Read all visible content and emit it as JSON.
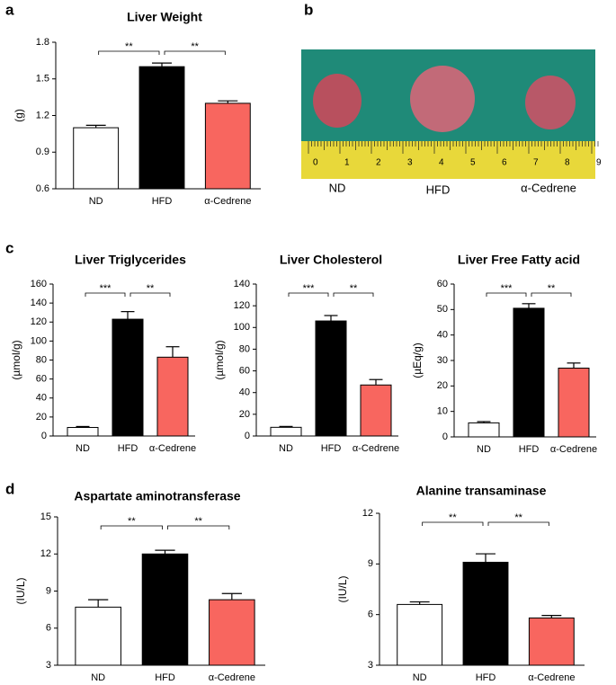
{
  "panel_labels": [
    "a",
    "b",
    "c",
    "d"
  ],
  "photo": {
    "ruler_labels": [
      0,
      1,
      2,
      3,
      4,
      5,
      6,
      7,
      8,
      9
    ],
    "labels": [
      "ND",
      "HFD",
      "α-Cedrene"
    ]
  },
  "chart_data": [
    {
      "type": "bar",
      "title": "Liver Weight",
      "y_label": "(g)",
      "categories": [
        "ND",
        "HFD",
        "α-Cedrene"
      ],
      "values": [
        1.1,
        1.6,
        1.3
      ],
      "errors": [
        0.02,
        0.03,
        0.02
      ],
      "colors": [
        "#ffffff",
        "#000000",
        "#f8665f"
      ],
      "ylim": [
        0.6,
        1.8
      ],
      "yticks": [
        0.6,
        0.9,
        1.2,
        1.5,
        1.8
      ],
      "brackets": [
        {
          "label": "**",
          "from": 0,
          "to": 1
        },
        {
          "label": "**",
          "from": 1,
          "to": 2
        }
      ]
    },
    {
      "type": "bar",
      "title": "Liver Triglycerides",
      "y_label": "(µmol/g)",
      "categories": [
        "ND",
        "HFD",
        "α-Cedrene"
      ],
      "values": [
        9,
        123,
        83
      ],
      "errors": [
        1,
        8,
        11
      ],
      "colors": [
        "#ffffff",
        "#000000",
        "#f8665f"
      ],
      "ylim": [
        0,
        160
      ],
      "yticks": [
        0,
        20,
        40,
        60,
        80,
        100,
        120,
        140,
        160
      ],
      "brackets": [
        {
          "label": "***",
          "from": 0,
          "to": 1
        },
        {
          "label": "**",
          "from": 1,
          "to": 2
        }
      ]
    },
    {
      "type": "bar",
      "title": "Liver Cholesterol",
      "y_label": "(µmol/g)",
      "categories": [
        "ND",
        "HFD",
        "α-Cedrene"
      ],
      "values": [
        8,
        106,
        47
      ],
      "errors": [
        0.8,
        5,
        5
      ],
      "colors": [
        "#ffffff",
        "#000000",
        "#f8665f"
      ],
      "ylim": [
        0,
        140
      ],
      "yticks": [
        0,
        20,
        40,
        60,
        80,
        100,
        120,
        140
      ],
      "brackets": [
        {
          "label": "***",
          "from": 0,
          "to": 1
        },
        {
          "label": "**",
          "from": 1,
          "to": 2
        }
      ]
    },
    {
      "type": "bar",
      "title": "Liver Free Fatty acid",
      "y_label": "(µEq/g)",
      "categories": [
        "ND",
        "HFD",
        "α-Cedrene"
      ],
      "values": [
        5.5,
        50.5,
        27
      ],
      "errors": [
        0.5,
        1.8,
        2
      ],
      "colors": [
        "#ffffff",
        "#000000",
        "#f8665f"
      ],
      "ylim": [
        0,
        60
      ],
      "yticks": [
        0,
        10,
        20,
        30,
        40,
        50,
        60
      ],
      "brackets": [
        {
          "label": "***",
          "from": 0,
          "to": 1
        },
        {
          "label": "**",
          "from": 1,
          "to": 2
        }
      ]
    },
    {
      "type": "bar",
      "title": "Aspartate aminotransferase",
      "y_label": "(IU/L)",
      "categories": [
        "ND",
        "HFD",
        "α-Cedrene"
      ],
      "values": [
        7.7,
        12,
        8.3
      ],
      "errors": [
        0.6,
        0.3,
        0.5
      ],
      "colors": [
        "#ffffff",
        "#000000",
        "#f8665f"
      ],
      "ylim": [
        3,
        15
      ],
      "yticks": [
        3,
        6,
        9,
        12,
        15
      ],
      "brackets": [
        {
          "label": "**",
          "from": 0,
          "to": 1
        },
        {
          "label": "**",
          "from": 1,
          "to": 2
        }
      ]
    },
    {
      "type": "bar",
      "title": "Alanine transaminase",
      "y_label": "(IU/L)",
      "categories": [
        "ND",
        "HFD",
        "α-Cedrene"
      ],
      "values": [
        6.6,
        9.1,
        5.8
      ],
      "errors": [
        0.15,
        0.5,
        0.15
      ],
      "colors": [
        "#ffffff",
        "#000000",
        "#f8665f"
      ],
      "ylim": [
        3,
        12
      ],
      "yticks": [
        3,
        6,
        9,
        12
      ],
      "brackets": [
        {
          "label": "**",
          "from": 0,
          "to": 1
        },
        {
          "label": "**",
          "from": 1,
          "to": 2
        }
      ]
    }
  ]
}
